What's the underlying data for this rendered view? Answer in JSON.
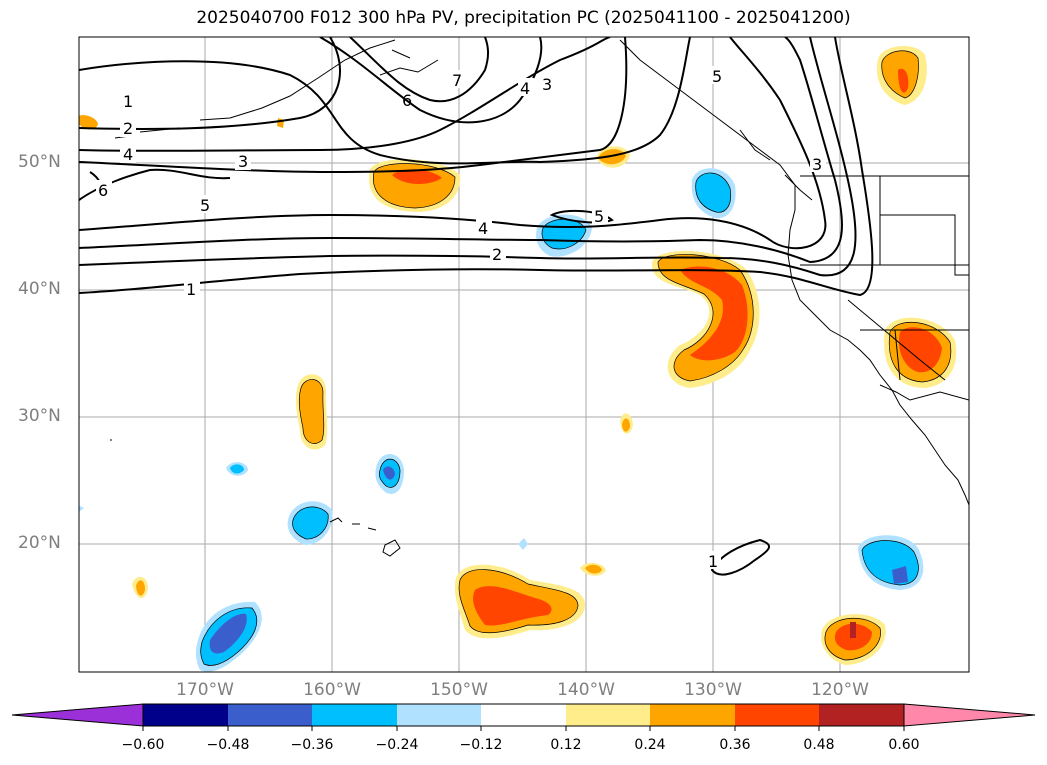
{
  "title": "2025040700 F012 300 hPa PV, precipitation PC (2025041100 - 2025041200)",
  "lat_labels": [
    "50°N",
    "40°N",
    "30°N",
    "20°N"
  ],
  "lon_labels": [
    "170°W",
    "160°W",
    "150°W",
    "140°W",
    "130°W",
    "120°W"
  ],
  "pv_contour_labels": [
    "1",
    "2",
    "4",
    "3",
    "5",
    "6",
    "7",
    "4",
    "3",
    "5",
    "3",
    "4",
    "2",
    "1",
    "5",
    "1"
  ],
  "colorbar": {
    "ticks": [
      "−0.60",
      "−0.48",
      "−0.36",
      "−0.24",
      "−0.12",
      "0.12",
      "0.24",
      "0.36",
      "0.48",
      "0.60"
    ],
    "colors": [
      "#9b30d9",
      "#00008b",
      "#3a5fcd",
      "#00bfff",
      "#b0e2ff",
      "#ffffff",
      "#ffec8b",
      "#ffa500",
      "#ff4500",
      "#b22222",
      "#ff88aa"
    ]
  },
  "colors": {
    "neg_light": "#b0e2ff",
    "neg_mid": "#00bfff",
    "neg_strong": "#3a5fcd",
    "pos_light": "#ffec8b",
    "pos_mid": "#ffa500",
    "pos_strong": "#ff4500",
    "grid": "#aaaaaa",
    "contour": "#000000"
  }
}
